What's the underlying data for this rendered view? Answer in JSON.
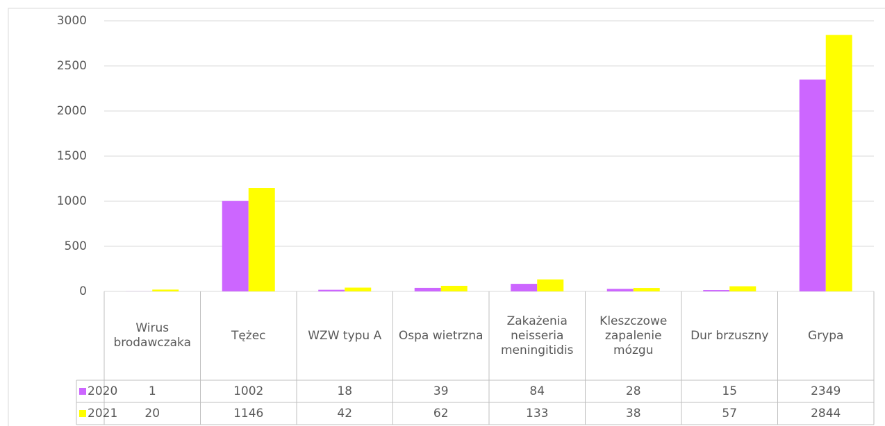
{
  "chart_data": {
    "type": "bar",
    "categories": [
      "Wirus brodawczaka",
      "Tężec",
      "WZW typu A",
      "Ospa wietrzna",
      "Zakażenia neisseria meningitidis",
      "Kleszczowe zapalenie mózgu",
      "Dur brzuszny",
      "Grypa"
    ],
    "series": [
      {
        "name": "2020",
        "color": "#cc66ff",
        "values": [
          1,
          1002,
          18,
          39,
          84,
          28,
          15,
          2349
        ]
      },
      {
        "name": "2021",
        "color": "#ffff00",
        "values": [
          20,
          1146,
          42,
          62,
          133,
          38,
          57,
          2844
        ]
      }
    ],
    "ylim": [
      0,
      3000
    ],
    "yticks": [
      0,
      500,
      1000,
      1500,
      2000,
      2500,
      3000
    ],
    "grid": true
  }
}
